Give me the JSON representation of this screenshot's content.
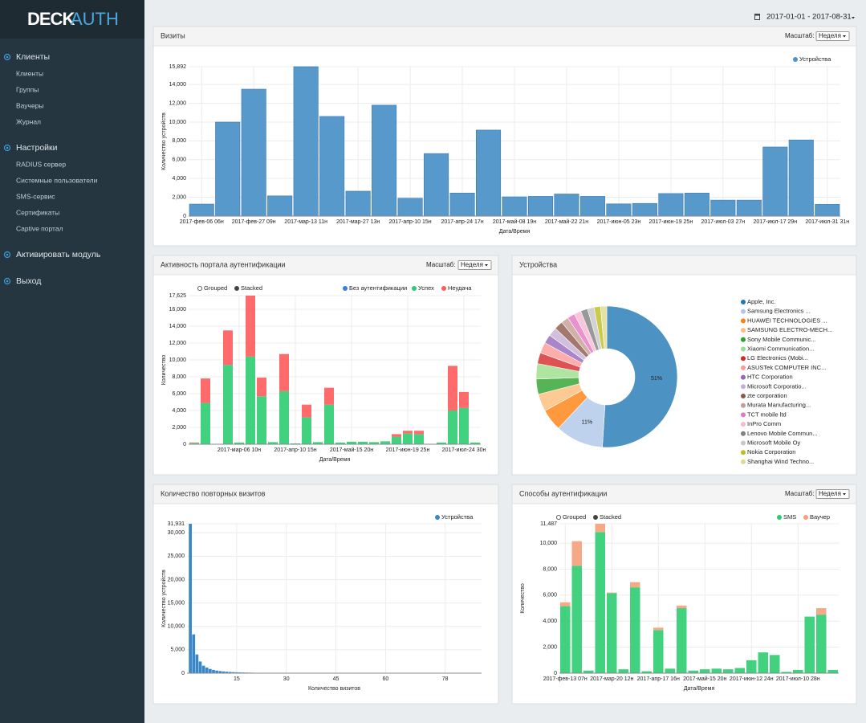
{
  "sidebar": {
    "logo_bold": "DECK",
    "logo_light": "AUTH",
    "sections": [
      {
        "title": "Клиенты",
        "items": [
          "Клиенты",
          "Группы",
          "Ваучеры",
          "Журнал"
        ]
      },
      {
        "title": "Настройки",
        "items": [
          "RADIUS сервер",
          "Системные пользователи",
          "SMS-сервис",
          "Сертификаты",
          "Captive портал"
        ]
      },
      {
        "title": "Активировать модуль",
        "items": []
      },
      {
        "title": "Выход",
        "items": []
      }
    ]
  },
  "header": {
    "date_range": "2017-01-01 - 2017-08-31"
  },
  "chart_data": [
    {
      "type": "bar",
      "title": "Визиты",
      "scale_label": "Масштаб:",
      "scale_value": "Неделя",
      "y_label": "Количество устройств",
      "x_label": "Дата/Время",
      "categories": [
        "2017-фев-06 06н",
        null,
        "2017-фев-27 09н",
        null,
        "2017-мар-13 11н",
        null,
        "2017-мар-27 13н",
        null,
        "2017-апр-10 15н",
        null,
        "2017-апр-24 17н",
        null,
        "2017-май-08 19н",
        null,
        "2017-май-22 21н",
        null,
        "2017-июн-05 23н",
        null,
        "2017-июн-19 25н",
        null,
        "2017-июл-03 27н",
        null,
        "2017-июл-17 29н",
        null,
        "2017-июл-31 31н"
      ],
      "series": [
        {
          "name": "Устройства",
          "color": "#4f93c9",
          "values": [
            1280,
            10000,
            13500,
            2150,
            15892,
            10600,
            2650,
            11800,
            1900,
            6650,
            2450,
            9150,
            2050,
            2100,
            2350,
            2100,
            1300,
            1350,
            2400,
            2450,
            1700,
            1700,
            7350,
            8100,
            1250
          ]
        }
      ],
      "ylim": [
        0,
        15892
      ],
      "yticks": [
        0,
        {
          "value": 2000,
          "label": "2,000"
        },
        {
          "value": 4000,
          "label": "4,000"
        },
        {
          "value": 6000,
          "label": "6,000"
        },
        {
          "value": 8000,
          "label": "8,000"
        },
        {
          "value": 10000,
          "label": "10,000"
        },
        {
          "value": 12000,
          "label": "12,000"
        },
        {
          "value": 14000,
          "label": "14,000"
        },
        {
          "value": 15892,
          "label": "15,892"
        }
      ],
      "grid": true
    },
    {
      "type": "bar",
      "title": "Активность портала аутентификации",
      "scale_label": "Масштаб:",
      "scale_value": "Неделя",
      "modes": [
        "Grouped",
        "Stacked"
      ],
      "stacked": true,
      "y_label": "Количество",
      "x_label": "Дата/Время",
      "categories": [
        null,
        null,
        null,
        null,
        "2017-мар-06 10н",
        null,
        null,
        null,
        null,
        "2017-апр-10 15н",
        null,
        null,
        null,
        null,
        "2017-май-15 20н",
        null,
        null,
        null,
        null,
        "2017-июн-19 25н",
        null,
        null,
        null,
        null,
        "2017-июл-24 30н",
        null
      ],
      "series": [
        {
          "name": "Без аутентификации",
          "color": "#3b7ddd",
          "values": [
            60,
            0,
            0,
            0,
            0,
            0,
            0,
            0,
            0,
            0,
            0,
            0,
            0,
            0,
            0,
            0,
            0,
            0,
            0,
            0,
            0,
            0,
            0,
            0,
            0,
            0
          ]
        },
        {
          "name": "Успех",
          "color": "#2ecc71",
          "values": [
            100,
            4900,
            0,
            9400,
            200,
            10400,
            5700,
            250,
            6300,
            100,
            3200,
            250,
            4700,
            200,
            300,
            300,
            250,
            350,
            900,
            1300,
            1200,
            50,
            200,
            4000,
            4300,
            200
          ]
        },
        {
          "name": "Неудача",
          "color": "#ff5b5b",
          "values": [
            50,
            2900,
            0,
            4100,
            0,
            7225,
            2200,
            0,
            4400,
            0,
            1500,
            0,
            2000,
            0,
            0,
            0,
            0,
            0,
            300,
            300,
            400,
            0,
            0,
            5300,
            1900,
            0
          ]
        }
      ],
      "ylim": [
        0,
        17625
      ],
      "yticks": [
        0,
        {
          "value": 2000,
          "label": "2,000"
        },
        {
          "value": 4000,
          "label": "4,000"
        },
        {
          "value": 6000,
          "label": "6,000"
        },
        {
          "value": 8000,
          "label": "8,000"
        },
        {
          "value": 10000,
          "label": "10,000"
        },
        {
          "value": 12000,
          "label": "12,000"
        },
        {
          "value": 14000,
          "label": "14,000"
        },
        {
          "value": 16000,
          "label": "16,000"
        },
        {
          "value": 17625,
          "label": "17,625"
        }
      ],
      "grid": true
    },
    {
      "type": "pie",
      "title": "Устройства",
      "donut": true,
      "categories": [
        "Apple, Inc.",
        "Samsung Electronics ...",
        "HUAWEI TECHNOLOGIES ...",
        "SAMSUNG ELECTRO-MECH...",
        "Sony Mobile Communic...",
        "Xiaomi Communication...",
        "LG Electronics (Mobi...",
        "ASUSTek COMPUTER INC...",
        "HTC Corporation",
        "Microsoft Corporatio...",
        "zte corporation",
        "Murata Manufacturing...",
        "TCT mobile ltd",
        "InPro Comm",
        "Lenovo Mobile Commun...",
        "Microsoft Mobile Oy",
        "Nokia Corporation",
        "Shanghai Wind Techno..."
      ],
      "values": [
        51,
        11,
        5,
        4,
        3.5,
        3.5,
        2.5,
        2.5,
        2,
        2,
        2,
        1.7,
        1.7,
        1.6,
        1.6,
        1.5,
        1.5,
        1.4
      ],
      "value_labels": [
        "51%",
        "11%",
        null,
        null,
        null,
        null,
        null,
        null,
        null,
        null,
        null,
        null,
        null,
        null,
        null,
        null,
        null,
        null
      ],
      "colors": [
        "#1f77b4",
        "#aec7e8",
        "#ff7f0e",
        "#ffbb78",
        "#2ca02c",
        "#98df8a",
        "#d62728",
        "#ff9896",
        "#9467bd",
        "#c5b0d5",
        "#8c564b",
        "#c49c94",
        "#e377c2",
        "#f7b6d2",
        "#7f7f7f",
        "#c7c7c7",
        "#bcbd22",
        "#dbdb8d"
      ]
    },
    {
      "type": "bar",
      "title": "Количество повторных визитов",
      "y_label": "Количество устройств",
      "x_label": "Количество визитов",
      "x": [
        1,
        2,
        3,
        4,
        5,
        6,
        7,
        8,
        9,
        10,
        11,
        12,
        13,
        14,
        15,
        16,
        17,
        18,
        19,
        20,
        21,
        22,
        23,
        24,
        25,
        26,
        27,
        28,
        29,
        30,
        31,
        32,
        33,
        34,
        35,
        36,
        37,
        38,
        39,
        40,
        41,
        42,
        43,
        44,
        45,
        46,
        47,
        48,
        49,
        50,
        51,
        52,
        53,
        54,
        55,
        56,
        57,
        58,
        59,
        60,
        61,
        62,
        63,
        64,
        65,
        66,
        67,
        68,
        69,
        70,
        71,
        72,
        73,
        74,
        75,
        76,
        77,
        78,
        79,
        80,
        81,
        82,
        83,
        84,
        85,
        86,
        87,
        88
      ],
      "series": [
        {
          "name": "Устройства",
          "color": "#3a87c8",
          "values": [
            31931,
            8300,
            4000,
            2500,
            1600,
            1200,
            900,
            700,
            550,
            450,
            380,
            320,
            270,
            230,
            200,
            170,
            150,
            130,
            115,
            100,
            90,
            80,
            72,
            65,
            58,
            52,
            47,
            43,
            39,
            35,
            32,
            29,
            27,
            25,
            23,
            21,
            19,
            18,
            17,
            16,
            15,
            14,
            13,
            12,
            11,
            10,
            10,
            9,
            9,
            8,
            8,
            7,
            7,
            6,
            6,
            6,
            5,
            5,
            5,
            4,
            4,
            4,
            4,
            3,
            3,
            3,
            3,
            3,
            2,
            2,
            2,
            2,
            2,
            2,
            2,
            1,
            1,
            1,
            1,
            1,
            1,
            1,
            1,
            1,
            1,
            1,
            1,
            1
          ]
        }
      ],
      "xlim": [
        0,
        89
      ],
      "xticks": [
        15,
        30,
        45,
        60,
        78
      ],
      "ylim": [
        0,
        31931
      ],
      "yticks": [
        0,
        {
          "value": 5000,
          "label": "5,000"
        },
        {
          "value": 10000,
          "label": "10,000"
        },
        {
          "value": 15000,
          "label": "15,000"
        },
        {
          "value": 20000,
          "label": "20,000"
        },
        {
          "value": 25000,
          "label": "25,000"
        },
        {
          "value": 30000,
          "label": "30,000"
        },
        {
          "value": 31931,
          "label": "31,931"
        }
      ],
      "grid": true
    },
    {
      "type": "bar",
      "title": "Способы аутентификации",
      "scale_label": "Масштаб:",
      "scale_value": "Неделя",
      "modes": [
        "Grouped",
        "Stacked"
      ],
      "stacked": true,
      "y_label": "Количество",
      "x_label": "Дата/Время",
      "categories": [
        "2017-фев-13 07н",
        null,
        null,
        null,
        "2017-мар-20 12н",
        null,
        null,
        null,
        "2017-апр-17 16н",
        null,
        null,
        null,
        "2017-май-15 20н",
        null,
        null,
        null,
        "2017-июн-12 24н",
        null,
        null,
        null,
        "2017-июл-10 28н",
        null,
        null,
        null
      ],
      "series": [
        {
          "name": "SMS",
          "color": "#2ecc71",
          "values": [
            5150,
            8250,
            200,
            10850,
            6150,
            300,
            6600,
            150,
            3300,
            350,
            5000,
            200,
            300,
            350,
            300,
            400,
            1000,
            1600,
            1400,
            100,
            250,
            4350,
            4500,
            250
          ]
        },
        {
          "name": "Ваучер",
          "color": "#f5a07a",
          "values": [
            300,
            1900,
            0,
            637,
            50,
            0,
            400,
            0,
            200,
            0,
            200,
            0,
            0,
            0,
            0,
            0,
            0,
            0,
            0,
            0,
            0,
            0,
            500,
            0
          ]
        }
      ],
      "ylim": [
        0,
        11487
      ],
      "yticks": [
        0,
        {
          "value": 2000,
          "label": "2,000"
        },
        {
          "value": 4000,
          "label": "4,000"
        },
        {
          "value": 6000,
          "label": "6,000"
        },
        {
          "value": 8000,
          "label": "8,000"
        },
        {
          "value": 10000,
          "label": "10,000"
        },
        {
          "value": 11487,
          "label": "11,487"
        }
      ],
      "grid": true
    }
  ]
}
